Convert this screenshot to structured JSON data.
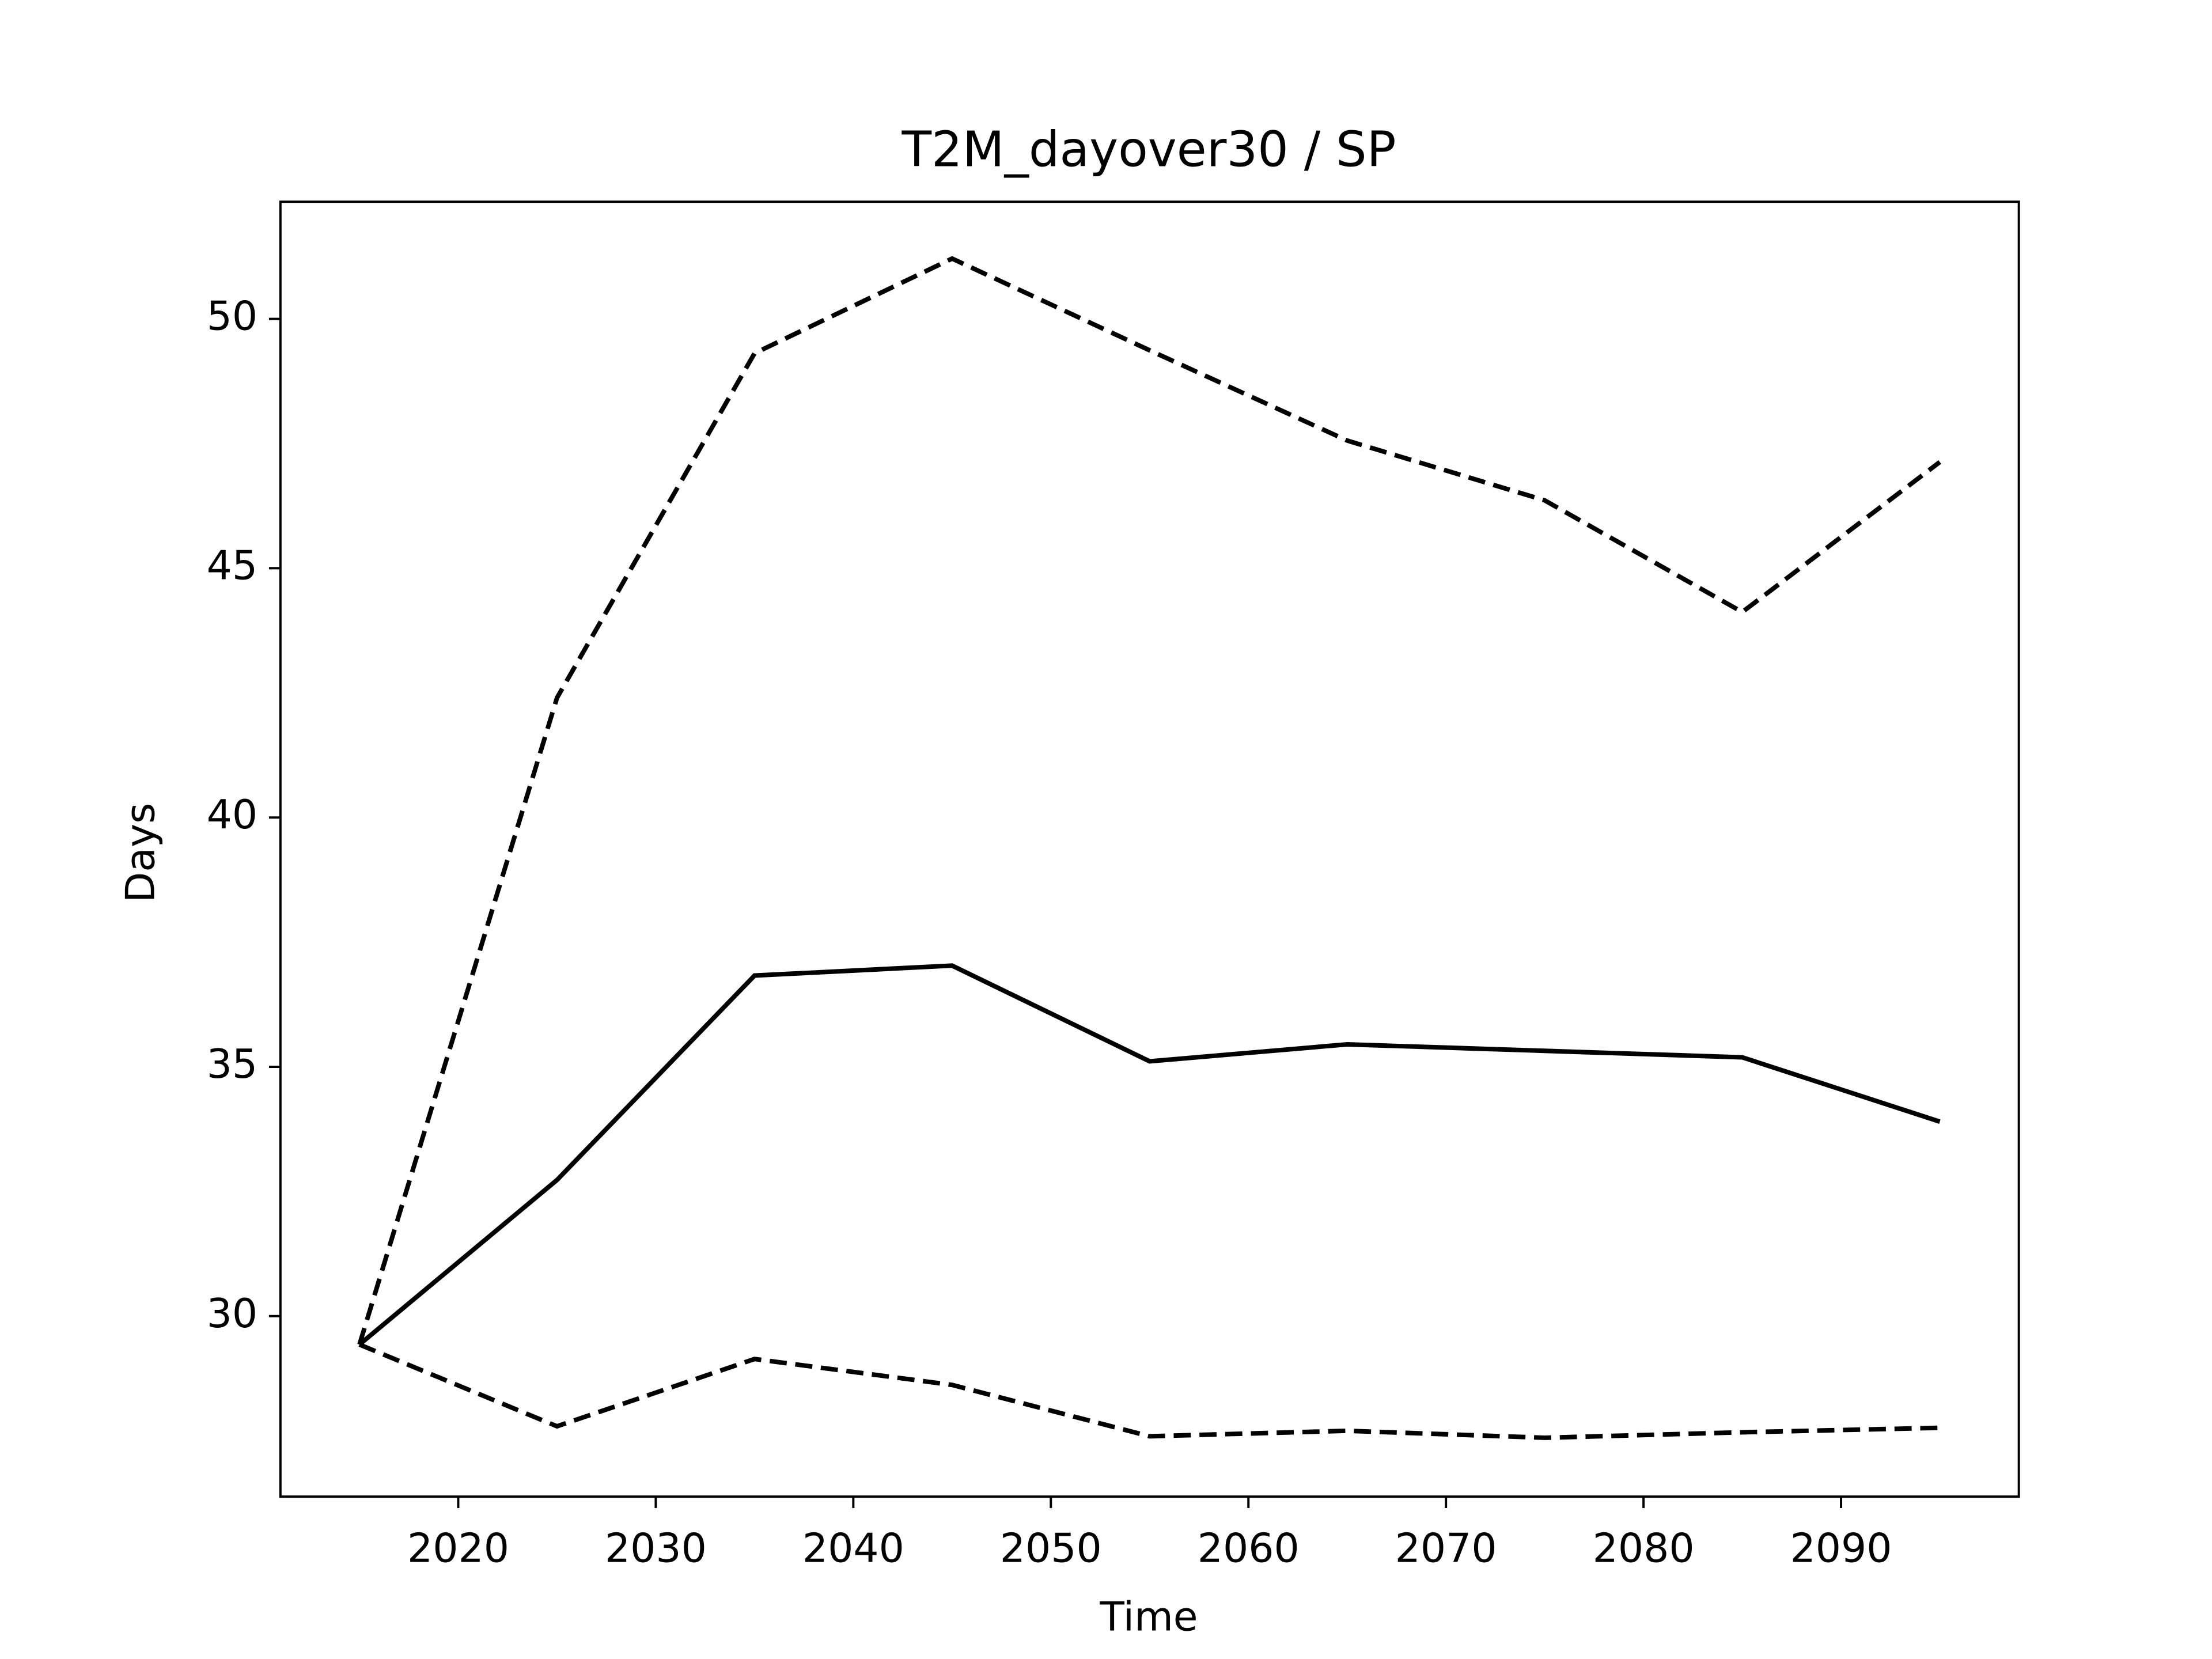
{
  "chart_data": {
    "type": "line",
    "title": "T2M_dayover30 / SP",
    "x_label": "Time",
    "y_label": "Days",
    "x": [
      2015,
      2025,
      2035,
      2045,
      2055,
      2065,
      2075,
      2085,
      2095
    ],
    "series": [
      {
        "color": "#000000",
        "linestyle": "solid",
        "values": [
          29.43,
          32.73,
          36.83,
          37.03,
          35.11,
          35.45,
          35.32,
          35.19,
          33.9
        ]
      },
      {
        "color": "#000000",
        "linestyle": "dashed",
        "values": [
          29.43,
          42.4,
          49.31,
          51.21,
          49.37,
          47.56,
          46.36,
          44.12,
          47.13
        ]
      },
      {
        "color": "#000000",
        "linestyle": "dashed",
        "values": [
          29.43,
          27.79,
          29.14,
          28.62,
          27.59,
          27.7,
          27.56,
          27.67,
          27.76
        ]
      }
    ],
    "xlim": [
      2011,
      2099
    ],
    "xticks": [
      2020,
      2030,
      2040,
      2050,
      2060,
      2070,
      2080,
      2090
    ],
    "ylim": [
      26.38,
      52.35
    ],
    "yticks": [
      30,
      35,
      40,
      45,
      50
    ],
    "grid": false
  }
}
